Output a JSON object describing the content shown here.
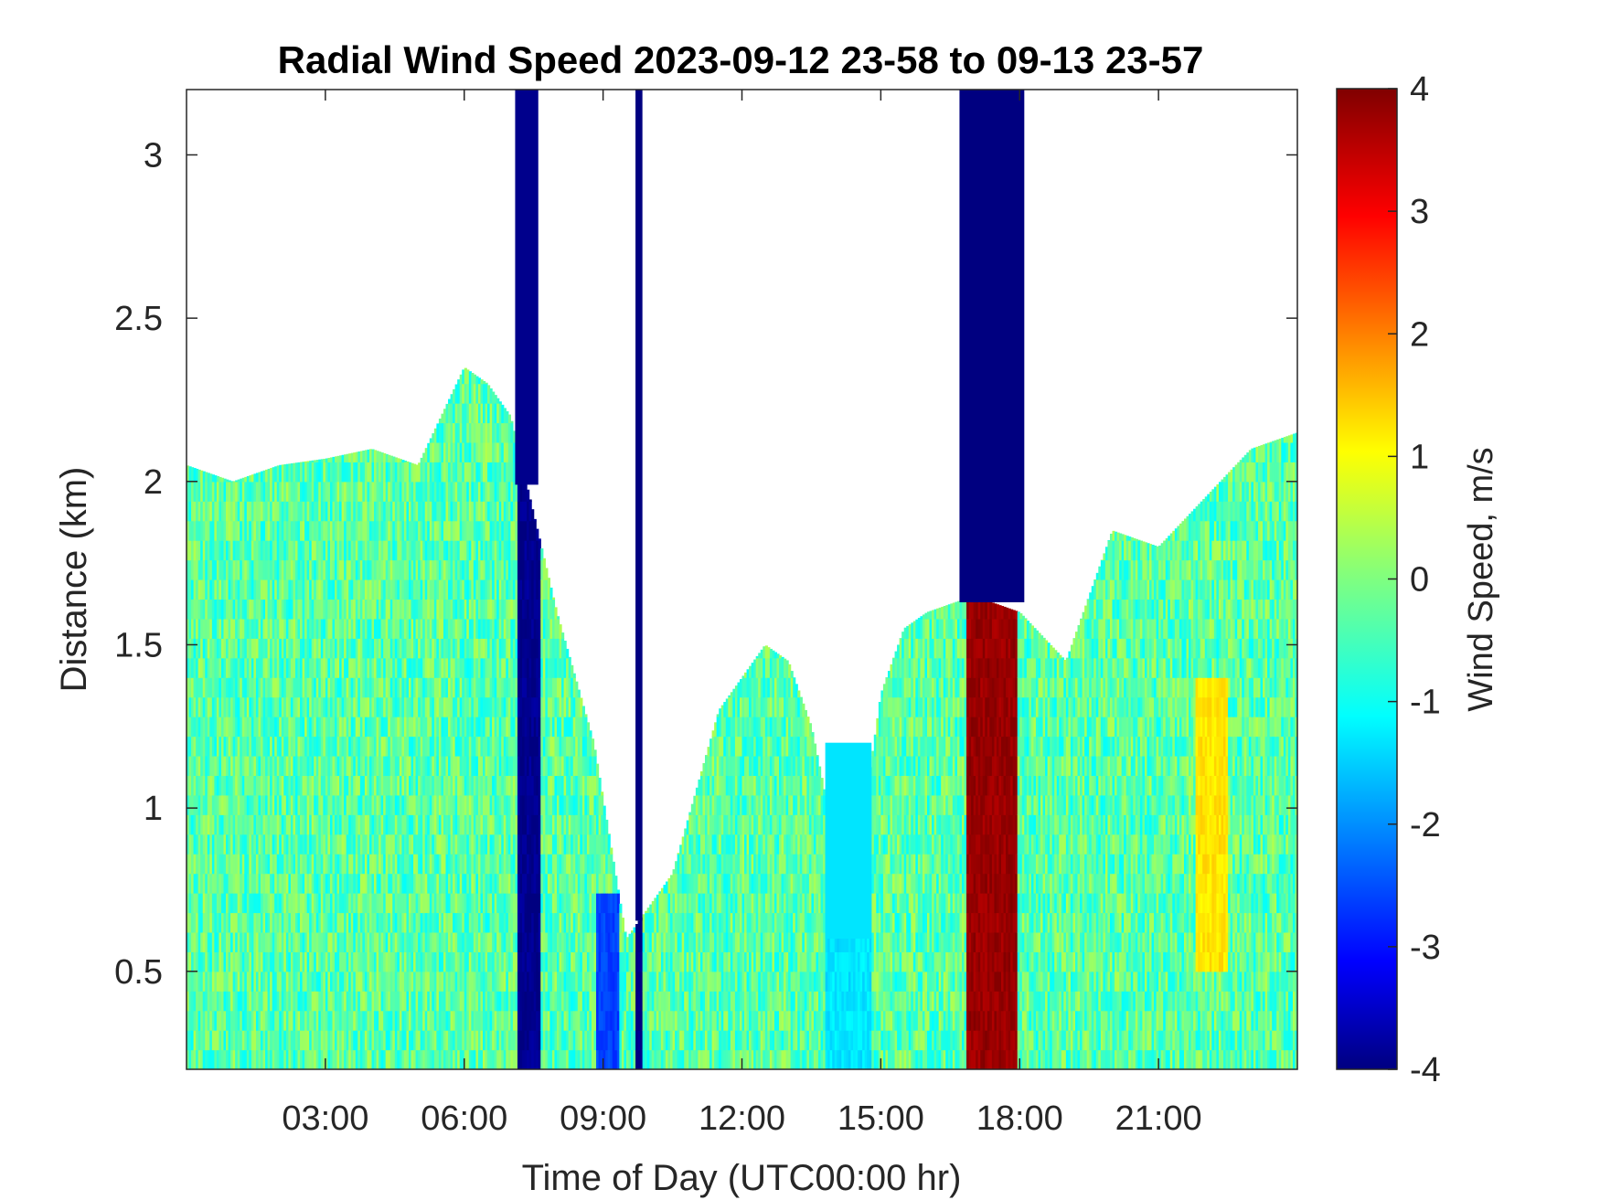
{
  "chart_data": {
    "type": "heatmap",
    "title": "Radial Wind Speed 2023-09-12 23-58 to 09-13 23-57",
    "xlabel": "Time of Day (UTC00:00 hr)",
    "ylabel": "Distance (km)",
    "colorbar_label": "Wind Speed, m/s",
    "colormap": "jet",
    "grid": false,
    "xlim_hours": [
      0,
      24
    ],
    "ylim_km": [
      0.2,
      3.2
    ],
    "clim": [
      -4,
      4
    ],
    "x_ticks": [
      {
        "hour": 3,
        "label": "03:00"
      },
      {
        "hour": 6,
        "label": "06:00"
      },
      {
        "hour": 9,
        "label": "09:00"
      },
      {
        "hour": 12,
        "label": "12:00"
      },
      {
        "hour": 15,
        "label": "15:00"
      },
      {
        "hour": 18,
        "label": "18:00"
      },
      {
        "hour": 21,
        "label": "21:00"
      }
    ],
    "y_ticks": [
      {
        "value": 0.5,
        "label": "0.5"
      },
      {
        "value": 1,
        "label": "1"
      },
      {
        "value": 1.5,
        "label": "1.5"
      },
      {
        "value": 2,
        "label": "2"
      },
      {
        "value": 2.5,
        "label": "2.5"
      },
      {
        "value": 3,
        "label": "3"
      }
    ],
    "colorbar_ticks": [
      {
        "value": -4,
        "label": "-4"
      },
      {
        "value": -3,
        "label": "-3"
      },
      {
        "value": -2,
        "label": "-2"
      },
      {
        "value": -1,
        "label": "-1"
      },
      {
        "value": 0,
        "label": "0"
      },
      {
        "value": 1,
        "label": "1"
      },
      {
        "value": 2,
        "label": "2"
      },
      {
        "value": 3,
        "label": "3"
      },
      {
        "value": 4,
        "label": "4"
      }
    ],
    "data_top_envelope_km": [
      [
        0,
        2.05
      ],
      [
        1,
        2.0
      ],
      [
        2,
        2.05
      ],
      [
        3,
        2.07
      ],
      [
        4,
        2.1
      ],
      [
        5,
        2.05
      ],
      [
        5.5,
        2.2
      ],
      [
        6,
        2.35
      ],
      [
        6.5,
        2.3
      ],
      [
        7,
        2.2
      ],
      [
        8,
        1.6
      ],
      [
        8.8,
        1.2
      ],
      [
        9.5,
        0.6
      ],
      [
        10.5,
        0.8
      ],
      [
        11.5,
        1.3
      ],
      [
        12.5,
        1.5
      ],
      [
        13,
        1.45
      ],
      [
        13.5,
        1.25
      ],
      [
        14,
        0.9
      ],
      [
        14.3,
        0.6
      ],
      [
        14.6,
        0.95
      ],
      [
        15,
        1.35
      ],
      [
        15.5,
        1.55
      ],
      [
        16,
        1.6
      ],
      [
        17,
        1.65
      ],
      [
        18,
        1.6
      ],
      [
        19,
        1.45
      ],
      [
        20,
        1.85
      ],
      [
        21,
        1.8
      ],
      [
        22,
        1.95
      ],
      [
        23,
        2.1
      ],
      [
        24,
        2.15
      ]
    ],
    "regions": [
      {
        "hours": [
          7.1,
          7.6
        ],
        "km": [
          0.2,
          3.2
        ],
        "value": -3.9
      },
      {
        "hours": [
          9.7,
          9.85
        ],
        "km": [
          0.2,
          3.2
        ],
        "value": -4
      },
      {
        "hours": [
          16.7,
          18.1
        ],
        "km": [
          1.6,
          3.2
        ],
        "value": -4
      },
      {
        "hours": [
          16.85,
          17.95
        ],
        "km": [
          0.2,
          1.6
        ],
        "value": 3.8
      },
      {
        "hours": [
          8.8,
          9.3
        ],
        "km": [
          0.2,
          0.7
        ],
        "value": -2.5
      },
      {
        "hours": [
          13.8,
          14.8
        ],
        "km": [
          0.2,
          1.2
        ],
        "value": -1.2
      },
      {
        "hours": [
          21.8,
          22.5
        ],
        "km": [
          0.5,
          1.4
        ],
        "value": 1.2
      }
    ],
    "background_value": -0.3
  }
}
